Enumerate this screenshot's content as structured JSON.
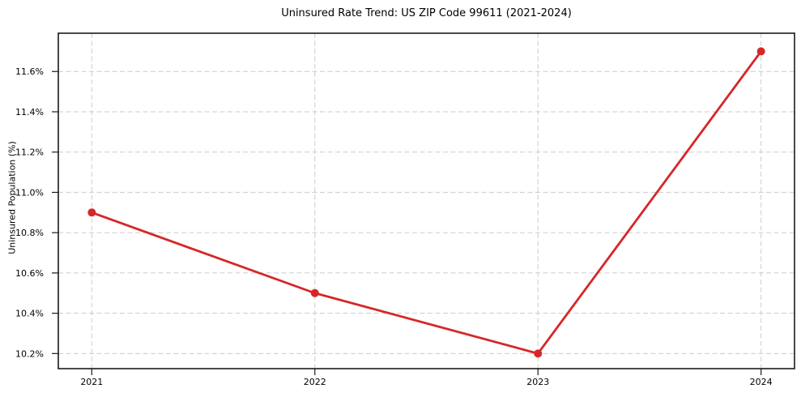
{
  "chart_data": {
    "type": "line",
    "title": "Uninsured Rate Trend: US ZIP Code 99611 (2021-2024)",
    "xlabel": "",
    "ylabel": "Uninsured Population (%)",
    "x": [
      2021,
      2022,
      2023,
      2024
    ],
    "values": [
      10.9,
      10.5,
      10.2,
      11.7
    ],
    "xtick_labels": [
      "2021",
      "2022",
      "2023",
      "2024"
    ],
    "ytick_values": [
      10.2,
      10.4,
      10.6,
      10.8,
      11.0,
      11.2,
      11.4,
      11.6
    ],
    "ytick_labels": [
      "10.2%",
      "10.4%",
      "10.6%",
      "10.8%",
      "11.0%",
      "11.2%",
      "11.4%",
      "11.6%"
    ],
    "xlim": [
      2020.85,
      2024.15
    ],
    "ylim": [
      10.125,
      11.79
    ],
    "grid": true,
    "grid_style": "dashed",
    "legend": false,
    "colors": {
      "line": "#d62728",
      "marker": "#d62728",
      "grid": "#cccccc",
      "spine": "#1a1a1a",
      "text": "#000000",
      "background": "#ffffff"
    }
  }
}
